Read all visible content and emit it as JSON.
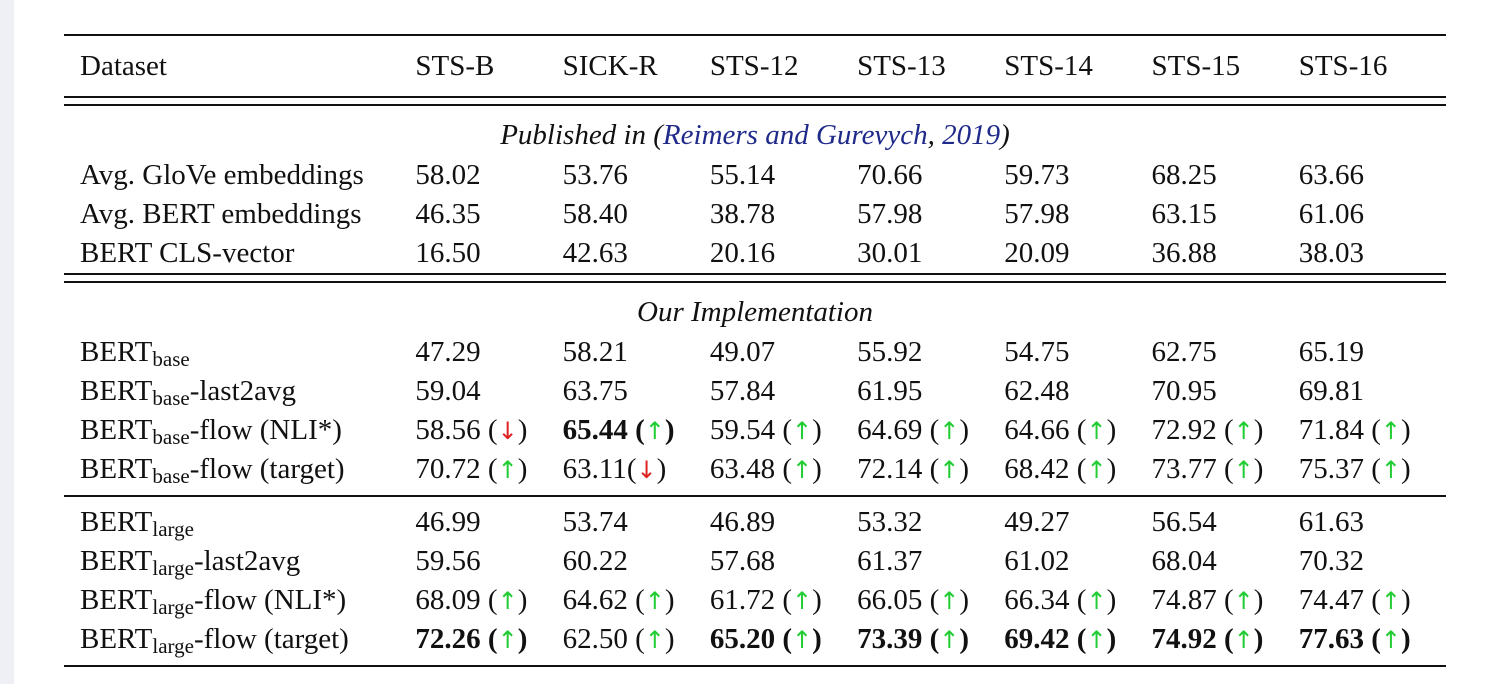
{
  "header": {
    "dataset_label": "Dataset",
    "columns": [
      "STS-B",
      "SICK-R",
      "STS-12",
      "STS-13",
      "STS-14",
      "STS-15",
      "STS-16"
    ]
  },
  "published_section": {
    "prefix": "Published in (",
    "citation_authors": "Reimers and Gurevych",
    "citation_year": "2019",
    "suffix": ")",
    "rows": [
      {
        "name": "Avg. GloVe embeddings",
        "values": [
          "58.02",
          "53.76",
          "55.14",
          "70.66",
          "59.73",
          "68.25",
          "63.66"
        ]
      },
      {
        "name": "Avg. BERT embeddings",
        "values": [
          "46.35",
          "58.40",
          "38.78",
          "57.98",
          "57.98",
          "63.15",
          "61.06"
        ]
      },
      {
        "name": "BERT CLS-vector",
        "values": [
          "16.50",
          "42.63",
          "20.16",
          "30.01",
          "20.09",
          "36.88",
          "38.03"
        ]
      }
    ]
  },
  "our_section": {
    "title": "Our Implementation",
    "base_rows": [
      {
        "model": "BERT",
        "size": "base",
        "suffix": "",
        "values": [
          {
            "v": "47.29",
            "bold": false,
            "arrow": ""
          },
          {
            "v": "58.21",
            "bold": false,
            "arrow": ""
          },
          {
            "v": "49.07",
            "bold": false,
            "arrow": ""
          },
          {
            "v": "55.92",
            "bold": false,
            "arrow": ""
          },
          {
            "v": "54.75",
            "bold": false,
            "arrow": ""
          },
          {
            "v": "62.75",
            "bold": false,
            "arrow": ""
          },
          {
            "v": "65.19",
            "bold": false,
            "arrow": ""
          }
        ]
      },
      {
        "model": "BERT",
        "size": "base",
        "suffix": "-last2avg",
        "values": [
          {
            "v": "59.04",
            "bold": false,
            "arrow": ""
          },
          {
            "v": "63.75",
            "bold": false,
            "arrow": ""
          },
          {
            "v": "57.84",
            "bold": false,
            "arrow": ""
          },
          {
            "v": "61.95",
            "bold": false,
            "arrow": ""
          },
          {
            "v": "62.48",
            "bold": false,
            "arrow": ""
          },
          {
            "v": "70.95",
            "bold": false,
            "arrow": ""
          },
          {
            "v": "69.81",
            "bold": false,
            "arrow": ""
          }
        ]
      },
      {
        "model": "BERT",
        "size": "base",
        "suffix": "-flow (NLI*)",
        "values": [
          {
            "v": "58.56",
            "bold": false,
            "arrow": "down",
            "sep": " "
          },
          {
            "v": "65.44",
            "bold": true,
            "arrow": "up",
            "sep": " "
          },
          {
            "v": "59.54",
            "bold": false,
            "arrow": "up",
            "sep": " "
          },
          {
            "v": "64.69",
            "bold": false,
            "arrow": "up",
            "sep": " "
          },
          {
            "v": "64.66",
            "bold": false,
            "arrow": "up",
            "sep": " "
          },
          {
            "v": "72.92",
            "bold": false,
            "arrow": "up",
            "sep": " "
          },
          {
            "v": "71.84",
            "bold": false,
            "arrow": "up",
            "sep": " "
          }
        ]
      },
      {
        "model": "BERT",
        "size": "base",
        "suffix": "-flow (target)",
        "values": [
          {
            "v": "70.72",
            "bold": false,
            "arrow": "up",
            "sep": " "
          },
          {
            "v": "63.11",
            "bold": false,
            "arrow": "down",
            "sep": ""
          },
          {
            "v": "63.48",
            "bold": false,
            "arrow": "up",
            "sep": " "
          },
          {
            "v": "72.14",
            "bold": false,
            "arrow": "up",
            "sep": " "
          },
          {
            "v": "68.42",
            "bold": false,
            "arrow": "up",
            "sep": " "
          },
          {
            "v": "73.77",
            "bold": false,
            "arrow": "up",
            "sep": " "
          },
          {
            "v": "75.37",
            "bold": false,
            "arrow": "up",
            "sep": " "
          }
        ]
      }
    ],
    "large_rows": [
      {
        "model": "BERT",
        "size": "large",
        "suffix": "",
        "values": [
          {
            "v": "46.99",
            "bold": false,
            "arrow": ""
          },
          {
            "v": "53.74",
            "bold": false,
            "arrow": ""
          },
          {
            "v": "46.89",
            "bold": false,
            "arrow": ""
          },
          {
            "v": "53.32",
            "bold": false,
            "arrow": ""
          },
          {
            "v": "49.27",
            "bold": false,
            "arrow": ""
          },
          {
            "v": "56.54",
            "bold": false,
            "arrow": ""
          },
          {
            "v": "61.63",
            "bold": false,
            "arrow": ""
          }
        ]
      },
      {
        "model": "BERT",
        "size": "large",
        "suffix": "-last2avg",
        "values": [
          {
            "v": "59.56",
            "bold": false,
            "arrow": ""
          },
          {
            "v": "60.22",
            "bold": false,
            "arrow": ""
          },
          {
            "v": "57.68",
            "bold": false,
            "arrow": ""
          },
          {
            "v": "61.37",
            "bold": false,
            "arrow": ""
          },
          {
            "v": "61.02",
            "bold": false,
            "arrow": ""
          },
          {
            "v": "68.04",
            "bold": false,
            "arrow": ""
          },
          {
            "v": "70.32",
            "bold": false,
            "arrow": ""
          }
        ]
      },
      {
        "model": "BERT",
        "size": "large",
        "suffix": "-flow (NLI*)",
        "values": [
          {
            "v": "68.09",
            "bold": false,
            "arrow": "up",
            "sep": " "
          },
          {
            "v": "64.62",
            "bold": false,
            "arrow": "up",
            "sep": " "
          },
          {
            "v": "61.72",
            "bold": false,
            "arrow": "up",
            "sep": " "
          },
          {
            "v": "66.05",
            "bold": false,
            "arrow": "up",
            "sep": " "
          },
          {
            "v": "66.34",
            "bold": false,
            "arrow": "up",
            "sep": " "
          },
          {
            "v": "74.87",
            "bold": false,
            "arrow": "up",
            "sep": " "
          },
          {
            "v": "74.47",
            "bold": false,
            "arrow": "up",
            "sep": " "
          }
        ]
      },
      {
        "model": "BERT",
        "size": "large",
        "suffix": "-flow (target)",
        "values": [
          {
            "v": "72.26",
            "bold": true,
            "arrow": "up",
            "sep": " "
          },
          {
            "v": "62.50",
            "bold": false,
            "arrow": "up",
            "sep": " "
          },
          {
            "v": "65.20",
            "bold": true,
            "arrow": "up",
            "sep": " "
          },
          {
            "v": "73.39",
            "bold": true,
            "arrow": "up",
            "sep": " "
          },
          {
            "v": "69.42",
            "bold": true,
            "arrow": "up",
            "sep": " "
          },
          {
            "v": "74.92",
            "bold": true,
            "arrow": "up",
            "sep": " "
          },
          {
            "v": "77.63",
            "bold": true,
            "arrow": "up",
            "sep": " "
          }
        ]
      }
    ]
  },
  "colors": {
    "citation": "#1f2a8a",
    "arrow_up": "#22cc33",
    "arrow_down": "#dd2222"
  },
  "icons": {
    "up": "up-arrow-icon",
    "down": "down-arrow-icon"
  }
}
